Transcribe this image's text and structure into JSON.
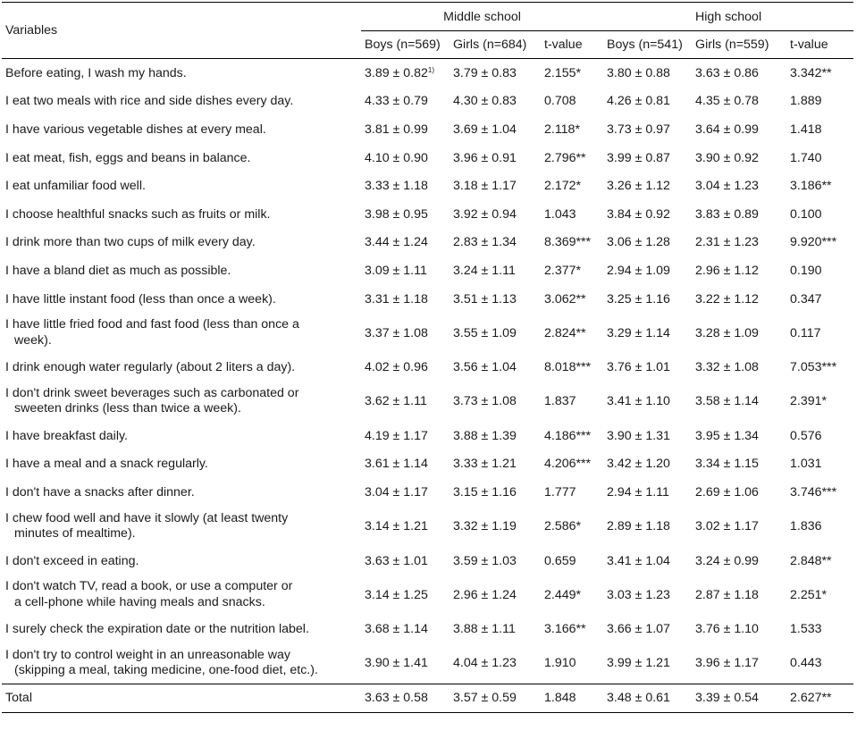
{
  "header": {
    "variables_label": "Variables",
    "groups": [
      "Middle school",
      "High school"
    ],
    "subheads": [
      "Boys (n=569)",
      "Girls (n=684)",
      "t-value",
      "Boys (n=541)",
      "Girls (n=559)",
      "t-value"
    ]
  },
  "rows": [
    {
      "lines": [
        "Before eating, I wash my hands."
      ],
      "vals": [
        "3.89 ± 0.82",
        "3.79 ± 0.83",
        "2.155*",
        "3.80 ± 0.88",
        "3.63 ± 0.86",
        "3.342**"
      ],
      "note": "1)"
    },
    {
      "lines": [
        "I eat two meals with rice and side dishes every day."
      ],
      "vals": [
        "4.33 ± 0.79",
        "4.30 ± 0.83",
        "0.708",
        "4.26 ± 0.81",
        "4.35 ± 0.78",
        "1.889"
      ]
    },
    {
      "lines": [
        "I have various vegetable dishes at every meal."
      ],
      "vals": [
        "3.81 ± 0.99",
        "3.69 ± 1.04",
        "2.118*",
        "3.73 ± 0.97",
        "3.64 ± 0.99",
        "1.418"
      ]
    },
    {
      "lines": [
        "I eat meat, fish, eggs and beans in balance."
      ],
      "vals": [
        "4.10 ± 0.90",
        "3.96 ± 0.91",
        "2.796**",
        "3.99 ± 0.87",
        "3.90 ± 0.92",
        "1.740"
      ]
    },
    {
      "lines": [
        "I eat unfamiliar food well."
      ],
      "vals": [
        "3.33 ± 1.18",
        "3.18 ± 1.17",
        "2.172*",
        "3.26 ± 1.12",
        "3.04 ± 1.23",
        "3.186**"
      ]
    },
    {
      "lines": [
        "I choose healthful snacks such as fruits or milk."
      ],
      "vals": [
        "3.98 ± 0.95",
        "3.92 ± 0.94",
        "1.043",
        "3.84 ± 0.92",
        "3.83 ± 0.89",
        "0.100"
      ]
    },
    {
      "lines": [
        "I drink more than two cups of milk every day."
      ],
      "vals": [
        "3.44 ± 1.24",
        "2.83 ± 1.34",
        "8.369***",
        "3.06 ± 1.28",
        "2.31 ± 1.23",
        "9.920***"
      ]
    },
    {
      "lines": [
        "I have a bland diet as much as possible."
      ],
      "vals": [
        "3.09 ± 1.11",
        "3.24 ± 1.11",
        "2.377*",
        "2.94 ± 1.09",
        "2.96 ± 1.12",
        "0.190"
      ]
    },
    {
      "lines": [
        "I have little instant food (less than once a week)."
      ],
      "vals": [
        "3.31 ± 1.18",
        "3.51 ± 1.13",
        "3.062**",
        "3.25 ± 1.16",
        "3.22 ± 1.12",
        "0.347"
      ]
    },
    {
      "lines": [
        "I have little fried food and fast food  (less than once a",
        "week)."
      ],
      "vals": [
        "3.37 ± 1.08",
        "3.55 ± 1.09",
        "2.824**",
        "3.29 ± 1.14",
        "3.28 ± 1.09",
        "0.117"
      ]
    },
    {
      "lines": [
        "I drink enough water regularly (about 2 liters a day)."
      ],
      "vals": [
        "4.02 ± 0.96",
        "3.56 ± 1.04",
        "8.018***",
        "3.76 ± 1.01",
        "3.32 ± 1.08",
        "7.053***"
      ]
    },
    {
      "lines": [
        "I don't drink sweet beverages such as carbonated or",
        "sweeten drinks (less than twice a week)."
      ],
      "vals": [
        "3.62 ± 1.11",
        "3.73 ± 1.08",
        "1.837",
        "3.41 ± 1.10",
        "3.58 ± 1.14",
        "2.391*"
      ]
    },
    {
      "lines": [
        "I have breakfast daily."
      ],
      "vals": [
        "4.19 ± 1.17",
        "3.88 ± 1.39",
        "4.186***",
        "3.90 ± 1.31",
        "3.95 ± 1.34",
        "0.576"
      ]
    },
    {
      "lines": [
        "I have a meal and a snack regularly."
      ],
      "vals": [
        "3.61 ± 1.14",
        "3.33 ± 1.21",
        "4.206***",
        "3.42 ± 1.20",
        "3.34 ± 1.15",
        "1.031"
      ]
    },
    {
      "lines": [
        "I don't have a snacks after dinner."
      ],
      "vals": [
        "3.04 ± 1.17",
        "3.15 ± 1.16",
        "1.777",
        "2.94 ± 1.11",
        "2.69 ± 1.06",
        "3.746***"
      ]
    },
    {
      "lines": [
        "I chew food well and have it slowly (at least twenty",
        "minutes of mealtime)."
      ],
      "vals": [
        "3.14 ± 1.21",
        "3.32 ± 1.19",
        "2.586*",
        "2.89 ± 1.18",
        "3.02 ± 1.17",
        "1.836"
      ]
    },
    {
      "lines": [
        "I don't exceed in eating."
      ],
      "vals": [
        "3.63 ± 1.01",
        "3.59 ± 1.03",
        "0.659",
        "3.41 ± 1.04",
        "3.24 ± 0.99",
        "2.848**"
      ]
    },
    {
      "lines": [
        "I don't watch TV, read a book, or use a computer or",
        "a cell-phone while having meals and snacks."
      ],
      "vals": [
        "3.14 ± 1.25",
        "2.96 ± 1.24",
        "2.449*",
        "3.03 ± 1.23",
        "2.87 ± 1.18",
        "2.251*"
      ]
    },
    {
      "lines": [
        "I surely check the expiration date or the nutrition label."
      ],
      "vals": [
        "3.68 ± 1.14",
        "3.88 ± 1.11",
        "3.166**",
        "3.66 ± 1.07",
        "3.76 ± 1.10",
        "1.533"
      ]
    },
    {
      "lines": [
        "I don't try to control weight in an unreasonable way",
        "(skipping a meal, taking medicine, one-food diet, etc.)."
      ],
      "vals": [
        "3.90 ± 1.41",
        "4.04 ± 1.23",
        "1.910",
        "3.99 ± 1.21",
        "3.96 ± 1.17",
        "0.443"
      ]
    }
  ],
  "total": {
    "label": "Total",
    "vals": [
      "3.63 ± 0.58",
      "3.57 ± 0.59",
      "1.848",
      "3.48 ± 0.61",
      "3.39 ± 0.54",
      "2.627**"
    ]
  }
}
